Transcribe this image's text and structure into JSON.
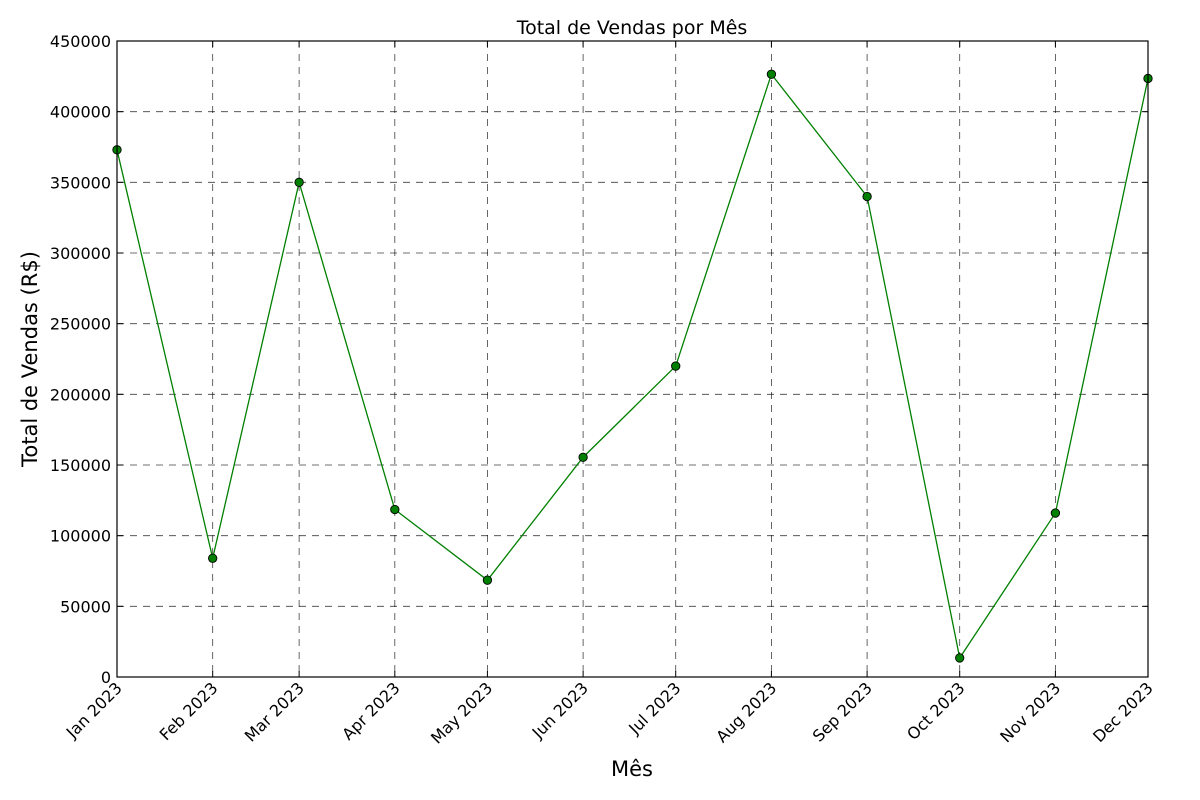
{
  "chart_data": {
    "type": "line",
    "title": "Total de Vendas por Mês",
    "xlabel": "Mês",
    "ylabel": "Total de Vendas (R$)",
    "x": [
      "Jan 2023",
      "Feb 2023",
      "Mar 2023",
      "Apr 2023",
      "May 2023",
      "Jun 2023",
      "Jul 2023",
      "Aug 2023",
      "Sep 2023",
      "Oct 2023",
      "Nov 2023",
      "Dec 2023"
    ],
    "x_dates": [
      "2023-01-01",
      "2023-02-01",
      "2023-03-01",
      "2023-04-01",
      "2023-05-01",
      "2023-06-01",
      "2023-07-01",
      "2023-08-01",
      "2023-09-01",
      "2023-10-01",
      "2023-11-01",
      "2023-12-01"
    ],
    "series": [
      {
        "values": [
          373000,
          84000,
          350000,
          118500,
          68500,
          155500,
          220000,
          426500,
          340000,
          13500,
          116000,
          423500
        ],
        "color": "#008000",
        "marker": "circle"
      }
    ],
    "ylim": [
      0,
      450000
    ],
    "yticks": [
      0,
      50000,
      100000,
      150000,
      200000,
      250000,
      300000,
      350000,
      400000,
      450000
    ],
    "ytick_labels": [
      "0",
      "50000",
      "100000",
      "150000",
      "200000",
      "250000",
      "300000",
      "350000",
      "400000",
      "450000"
    ],
    "grid": true,
    "legend": "none"
  }
}
